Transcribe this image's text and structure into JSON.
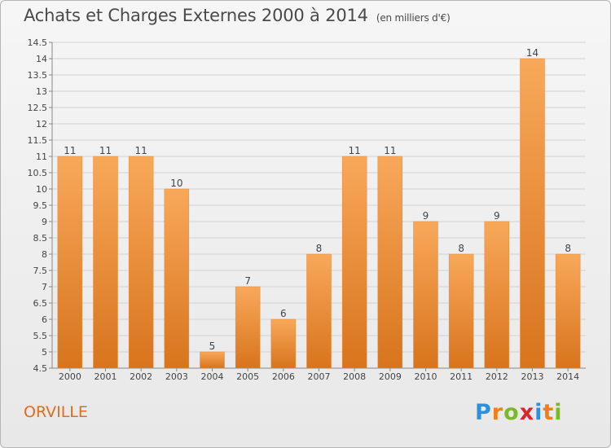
{
  "header": {
    "title": "Achats et Charges Externes 2000 à 2014",
    "subtitle": "(en milliers d'€)"
  },
  "footer": {
    "commune": "ORVILLE",
    "logo_text": "Proxiti",
    "logo_letters": [
      "P",
      "r",
      "o",
      "x",
      "i",
      "t",
      "i"
    ],
    "logo_colors": [
      "#2f8fd8",
      "#ee7f1a",
      "#7ab929",
      "#d9262a",
      "#2f8fd8",
      "#ee7f1a",
      "#7ab929"
    ]
  },
  "chart_data": {
    "type": "bar",
    "categories": [
      "2000",
      "2001",
      "2002",
      "2003",
      "2004",
      "2005",
      "2006",
      "2007",
      "2008",
      "2009",
      "2010",
      "2011",
      "2012",
      "2013",
      "2014"
    ],
    "values": [
      11,
      11,
      11,
      10,
      5,
      7,
      6,
      8,
      11,
      11,
      9,
      8,
      9,
      14,
      8
    ],
    "title": "Achats et Charges Externes 2000 à 2014",
    "subtitle": "(en milliers d'€)",
    "xlabel": "",
    "ylabel": "",
    "ylim": [
      4.5,
      14.5
    ],
    "yticks": [
      4.5,
      5,
      5.5,
      6,
      6.5,
      7,
      7.5,
      8,
      8.5,
      9,
      9.5,
      10,
      10.5,
      11,
      11.5,
      12,
      12.5,
      13,
      13.5,
      14,
      14.5
    ],
    "ytick_labels": [
      "4.5",
      "5",
      "5.5",
      "6",
      "6.5",
      "7",
      "7.5",
      "8",
      "8.5",
      "9",
      "9.5",
      "10",
      "10.5",
      "11",
      "11.5",
      "12",
      "12.5",
      "13",
      "13.5",
      "14",
      "14.5"
    ],
    "grid": true,
    "bar_color": "#f08a2a",
    "bar_color_top": "#f8a85a",
    "bar_color_bottom": "#d8741c"
  }
}
